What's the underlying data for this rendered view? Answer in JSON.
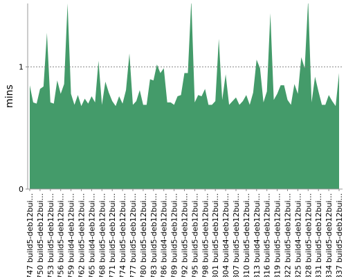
{
  "chart_data": {
    "type": "area",
    "ylabel": "mins",
    "color": "#449b6a",
    "ylim": [
      0,
      1.52
    ],
    "yticks": [
      0,
      1
    ],
    "grid": true,
    "categories": [
      "#747 build5-deb12bui...",
      null,
      null,
      "#750 build5-deb12bui...",
      null,
      null,
      "#753 build5-deb12bui...",
      null,
      null,
      "#756 build5-deb12bui...",
      null,
      null,
      "#759 build4-deb12bui...",
      null,
      null,
      "#762 build5-deb12bui...",
      null,
      null,
      "#765 build4-deb12bui...",
      null,
      null,
      "#768 build5-deb12bui...",
      null,
      null,
      "#771 build5-deb12bui...",
      null,
      null,
      "#774 build5-deb12bui...",
      null,
      null,
      "#777 build5-deb12bui...",
      null,
      null,
      "#780 build5-deb12bui...",
      null,
      null,
      "#783 build5-deb12bui...",
      null,
      null,
      "#786 build4-deb12bui...",
      null,
      null,
      "#789 build5-deb12bui...",
      null,
      null,
      "#792 build5-deb12bui...",
      null,
      null,
      "#795 build5-deb12bui...",
      null,
      null,
      "#798 build5-deb12bui...",
      null,
      null,
      "#801 build5-deb12bui...",
      null,
      null,
      "#804 build4-deb12bui...",
      null,
      null,
      "#807 build5-deb12bui...",
      null,
      null,
      "#810 build5-deb12bui...",
      null,
      null,
      "#813 build4-deb12bui...",
      null,
      null,
      "#816 build5-deb12bui...",
      null,
      null,
      "#819 build5-deb12bui...",
      null,
      null,
      "#822 build5-deb12bui...",
      null,
      null,
      "#825 build4-deb12bui...",
      null,
      null,
      "#828 build5-deb12bui...",
      null,
      null,
      "#831 build5-deb12bui...",
      null,
      null,
      "#834 build5-deb12bui...",
      null,
      null,
      "#837 build5-deb12bui..."
    ],
    "values": [
      0.85,
      0.71,
      0.7,
      0.82,
      0.84,
      1.28,
      0.71,
      0.7,
      0.89,
      0.78,
      0.86,
      1.52,
      0.78,
      0.69,
      0.77,
      0.68,
      0.74,
      0.7,
      0.76,
      0.71,
      1.05,
      0.69,
      0.88,
      0.79,
      0.72,
      0.68,
      0.76,
      0.7,
      0.81,
      1.11,
      0.69,
      0.72,
      0.81,
      0.69,
      0.69,
      0.9,
      0.89,
      1.02,
      0.95,
      0.99,
      0.71,
      0.71,
      0.69,
      0.76,
      0.77,
      0.95,
      0.95,
      1.55,
      0.71,
      0.77,
      0.76,
      0.82,
      0.69,
      0.69,
      0.72,
      1.23,
      0.73,
      0.94,
      0.69,
      0.72,
      0.75,
      0.69,
      0.72,
      0.77,
      0.69,
      0.79,
      1.06,
      0.99,
      0.71,
      0.8,
      1.44,
      0.73,
      0.78,
      0.85,
      0.85,
      0.73,
      0.69,
      0.86,
      0.78,
      1.08,
      0.99,
      1.55,
      0.71,
      0.92,
      0.8,
      0.69,
      0.69,
      0.77,
      0.72,
      0.68,
      0.95
    ]
  }
}
